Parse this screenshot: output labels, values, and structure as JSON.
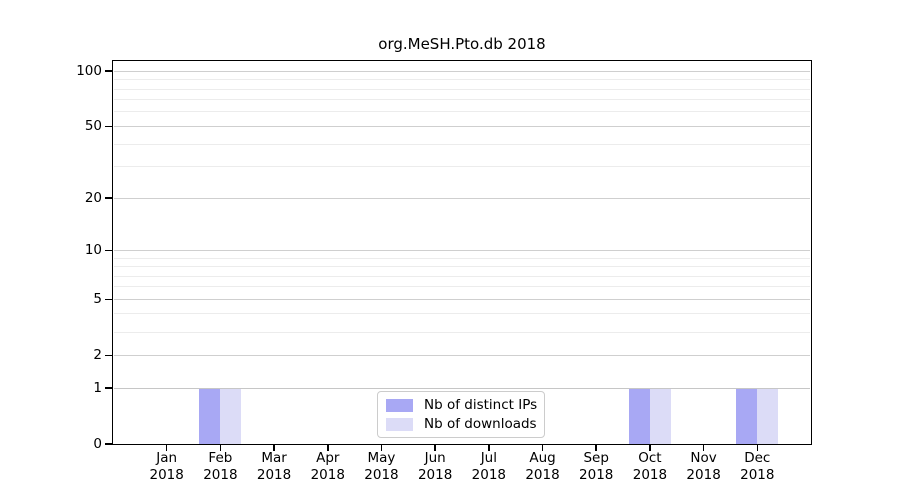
{
  "chart_data": {
    "type": "bar",
    "title": "org.MeSH.Pto.db 2018",
    "categories": [
      "Jan",
      "Feb",
      "Mar",
      "Apr",
      "May",
      "Jun",
      "Jul",
      "Aug",
      "Sep",
      "Oct",
      "Nov",
      "Dec"
    ],
    "x_year": "2018",
    "series": [
      {
        "name": "Nb of distinct IPs",
        "color": "#a8a8f4",
        "values": [
          0,
          1,
          0,
          0,
          0,
          0,
          0,
          0,
          0,
          1,
          0,
          1
        ]
      },
      {
        "name": "Nb of downloads",
        "color": "#dcdcf7",
        "values": [
          0,
          1,
          0,
          0,
          0,
          0,
          0,
          0,
          0,
          1,
          0,
          1
        ]
      }
    ],
    "yscale": "log1p",
    "ylim": [
      0,
      113
    ],
    "yticks": [
      0,
      1,
      2,
      5,
      10,
      20,
      50,
      100
    ],
    "minor_yticks": [
      3,
      4,
      6,
      7,
      8,
      9,
      30,
      40,
      60,
      70,
      80,
      90
    ],
    "grid": true,
    "legend_position": "lower center"
  },
  "colors": {
    "major_grid": "#cfcfcf",
    "minor_grid": "#ececec",
    "value_one_grid": "#c6c6c6",
    "axis": "#000000",
    "legend_border": "#cccccc",
    "background": "#ffffff"
  }
}
